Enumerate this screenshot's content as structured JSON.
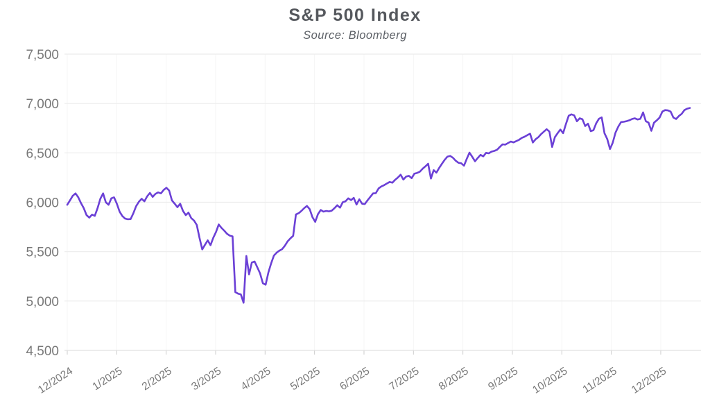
{
  "chart_data": {
    "type": "line",
    "title": "S&P 500 Index",
    "subtitle": "Source: Bloomberg",
    "series_name": "S&P 500 Index",
    "line_color": "#6b40d6",
    "grid": "horizontal",
    "legend": "none",
    "ylim": [
      4500,
      7500
    ],
    "y_tick_values": [
      7500,
      7000,
      6500,
      6000,
      5500,
      5000,
      4500
    ],
    "y_tick_labels": [
      "7,500",
      "7,000",
      "6,500",
      "6,000",
      "5,500",
      "5,000",
      "4,500"
    ],
    "x_tick_labels": [
      "12/2024",
      "1/2025",
      "2/2025",
      "3/2025",
      "4/2025",
      "5/2025",
      "6/2025",
      "7/2025",
      "8/2025",
      "9/2025",
      "10/2025",
      "11/2025",
      "12/2025"
    ],
    "values": [
      5975,
      6020,
      6065,
      6090,
      6050,
      5990,
      5940,
      5870,
      5845,
      5875,
      5862,
      5940,
      6035,
      6090,
      6000,
      5975,
      6040,
      6050,
      5985,
      5905,
      5860,
      5835,
      5828,
      5830,
      5890,
      5960,
      6005,
      6035,
      6010,
      6060,
      6095,
      6055,
      6085,
      6100,
      6090,
      6125,
      6147,
      6118,
      6018,
      5985,
      5950,
      5985,
      5912,
      5870,
      5895,
      5840,
      5815,
      5770,
      5640,
      5523,
      5570,
      5614,
      5565,
      5640,
      5700,
      5775,
      5740,
      5712,
      5680,
      5662,
      5655,
      5090,
      5075,
      5068,
      4983,
      5456,
      5270,
      5390,
      5400,
      5340,
      5280,
      5180,
      5165,
      5290,
      5380,
      5460,
      5490,
      5510,
      5525,
      5560,
      5605,
      5635,
      5660,
      5876,
      5890,
      5912,
      5940,
      5963,
      5930,
      5850,
      5802,
      5880,
      5922,
      5905,
      5912,
      5908,
      5915,
      5940,
      5970,
      5945,
      6000,
      6010,
      6040,
      6022,
      6045,
      5977,
      6030,
      5985,
      5982,
      6020,
      6055,
      6090,
      6092,
      6140,
      6160,
      6173,
      6190,
      6205,
      6198,
      6227,
      6250,
      6279,
      6230,
      6260,
      6268,
      6244,
      6290,
      6297,
      6310,
      6340,
      6363,
      6390,
      6240,
      6325,
      6300,
      6348,
      6390,
      6430,
      6462,
      6469,
      6450,
      6420,
      6400,
      6395,
      6370,
      6440,
      6502,
      6460,
      6415,
      6448,
      6480,
      6465,
      6500,
      6495,
      6513,
      6520,
      6532,
      6560,
      6587,
      6584,
      6600,
      6615,
      6606,
      6620,
      6632,
      6652,
      6664,
      6680,
      6694,
      6605,
      6638,
      6660,
      6690,
      6715,
      6740,
      6715,
      6560,
      6660,
      6700,
      6736,
      6700,
      6792,
      6876,
      6890,
      6880,
      6820,
      6850,
      6840,
      6772,
      6796,
      6720,
      6730,
      6800,
      6846,
      6860,
      6700,
      6640,
      6539,
      6603,
      6705,
      6766,
      6812,
      6815,
      6821,
      6830,
      6843,
      6850,
      6838,
      6845,
      6910,
      6821,
      6806,
      6724,
      6806,
      6830,
      6858,
      6918,
      6933,
      6930,
      6918,
      6858,
      6843,
      6873,
      6895,
      6933,
      6948,
      6955
    ]
  }
}
